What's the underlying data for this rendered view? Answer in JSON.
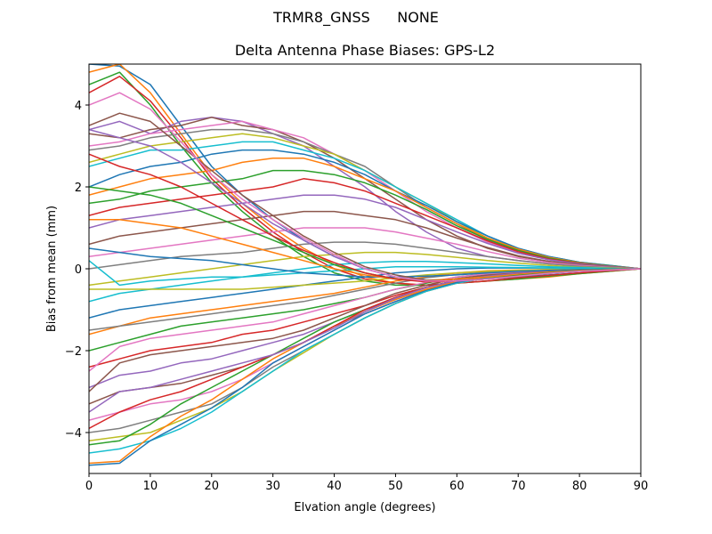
{
  "figure": {
    "suptitle": "TRMR8_GNSS      NONE",
    "title": "Delta Antenna Phase Biases: GPS-L2"
  },
  "chart_data": {
    "type": "line",
    "title": "Delta Antenna Phase Biases: GPS-L2",
    "xlabel": "Elvation angle (degrees)",
    "ylabel": "Bias from mean (mm)",
    "xlim": [
      0,
      90
    ],
    "ylim": [
      -5,
      5
    ],
    "xticks": [
      0,
      10,
      20,
      30,
      40,
      50,
      60,
      70,
      80,
      90
    ],
    "yticks": [
      -4,
      -2,
      0,
      2,
      4
    ],
    "grid": false,
    "legend": false,
    "colors": [
      "#1f77b4",
      "#ff7f0e",
      "#2ca02c",
      "#d62728",
      "#9467bd",
      "#8c564b",
      "#e377c2",
      "#7f7f7f",
      "#bcbd22",
      "#17becf"
    ],
    "x": [
      0,
      5,
      10,
      15,
      20,
      25,
      30,
      35,
      40,
      45,
      50,
      55,
      60,
      65,
      70,
      75,
      80,
      85,
      90
    ],
    "series": [
      {
        "values": [
          5.0,
          4.95,
          4.5,
          3.5,
          2.5,
          1.8,
          1.2,
          0.7,
          0.3,
          0.0,
          -0.2,
          -0.3,
          -0.3,
          -0.25,
          -0.2,
          -0.15,
          -0.1,
          -0.05,
          0.0
        ]
      },
      {
        "values": [
          4.8,
          5.0,
          4.3,
          3.3,
          2.3,
          1.6,
          1.0,
          0.5,
          0.1,
          -0.2,
          -0.35,
          -0.4,
          -0.35,
          -0.3,
          -0.25,
          -0.2,
          -0.12,
          -0.06,
          0.0
        ]
      },
      {
        "values": [
          4.5,
          4.8,
          4.0,
          3.0,
          2.1,
          1.4,
          0.8,
          0.3,
          -0.1,
          -0.3,
          -0.4,
          -0.4,
          -0.35,
          -0.3,
          -0.25,
          -0.18,
          -0.12,
          -0.06,
          0.0
        ]
      },
      {
        "values": [
          4.3,
          4.7,
          4.1,
          3.2,
          2.2,
          1.5,
          0.9,
          0.4,
          0.0,
          -0.25,
          -0.35,
          -0.4,
          -0.35,
          -0.3,
          -0.22,
          -0.16,
          -0.1,
          -0.05,
          0.0
        ]
      },
      {
        "values": [
          3.4,
          3.6,
          3.3,
          3.6,
          3.7,
          3.6,
          3.3,
          3.0,
          2.5,
          2.0,
          1.4,
          0.9,
          0.5,
          0.3,
          0.2,
          0.12,
          0.08,
          0.04,
          0.0
        ]
      },
      {
        "values": [
          3.3,
          3.2,
          3.4,
          3.5,
          3.7,
          3.5,
          3.4,
          3.1,
          2.7,
          2.2,
          1.7,
          1.2,
          0.8,
          0.5,
          0.3,
          0.18,
          0.1,
          0.05,
          0.0
        ]
      },
      {
        "values": [
          3.0,
          3.1,
          3.3,
          3.4,
          3.5,
          3.6,
          3.4,
          3.2,
          2.8,
          2.4,
          1.9,
          1.4,
          1.0,
          0.65,
          0.4,
          0.22,
          0.12,
          0.06,
          0.0
        ]
      },
      {
        "values": [
          2.9,
          3.0,
          3.2,
          3.3,
          3.4,
          3.4,
          3.3,
          3.1,
          2.8,
          2.5,
          2.0,
          1.5,
          1.1,
          0.7,
          0.45,
          0.25,
          0.14,
          0.07,
          0.0
        ]
      },
      {
        "values": [
          2.6,
          2.8,
          3.0,
          3.1,
          3.2,
          3.3,
          3.2,
          3.0,
          2.8,
          2.4,
          2.0,
          1.6,
          1.15,
          0.75,
          0.48,
          0.28,
          0.15,
          0.07,
          0.0
        ]
      },
      {
        "values": [
          2.5,
          2.7,
          2.9,
          2.9,
          3.0,
          3.1,
          3.1,
          2.9,
          2.7,
          2.4,
          2.0,
          1.6,
          1.2,
          0.8,
          0.5,
          0.3,
          0.16,
          0.08,
          0.0
        ]
      },
      {
        "values": [
          2.0,
          2.3,
          2.5,
          2.6,
          2.8,
          2.9,
          2.9,
          2.8,
          2.6,
          2.3,
          1.9,
          1.55,
          1.15,
          0.8,
          0.5,
          0.3,
          0.16,
          0.08,
          0.0
        ]
      },
      {
        "values": [
          1.8,
          2.0,
          2.2,
          2.3,
          2.4,
          2.6,
          2.7,
          2.7,
          2.5,
          2.2,
          1.9,
          1.5,
          1.1,
          0.75,
          0.48,
          0.28,
          0.15,
          0.07,
          0.0
        ]
      },
      {
        "values": [
          1.6,
          1.7,
          1.9,
          2.0,
          2.1,
          2.2,
          2.4,
          2.4,
          2.3,
          2.1,
          1.8,
          1.45,
          1.05,
          0.72,
          0.45,
          0.26,
          0.14,
          0.07,
          0.0
        ]
      },
      {
        "values": [
          1.3,
          1.5,
          1.6,
          1.7,
          1.8,
          1.9,
          2.0,
          2.2,
          2.1,
          1.9,
          1.6,
          1.3,
          1.0,
          0.68,
          0.42,
          0.24,
          0.13,
          0.06,
          0.0
        ]
      },
      {
        "values": [
          1.0,
          1.2,
          1.3,
          1.4,
          1.5,
          1.6,
          1.7,
          1.8,
          1.8,
          1.7,
          1.5,
          1.2,
          0.9,
          0.62,
          0.38,
          0.22,
          0.12,
          0.06,
          0.0
        ]
      },
      {
        "values": [
          0.6,
          0.8,
          0.9,
          1.0,
          1.1,
          1.2,
          1.3,
          1.4,
          1.4,
          1.3,
          1.2,
          1.0,
          0.75,
          0.52,
          0.32,
          0.18,
          0.1,
          0.05,
          0.0
        ]
      },
      {
        "values": [
          0.3,
          0.4,
          0.5,
          0.6,
          0.7,
          0.8,
          0.9,
          1.0,
          1.0,
          1.0,
          0.9,
          0.75,
          0.6,
          0.42,
          0.26,
          0.15,
          0.08,
          0.04,
          0.0
        ]
      },
      {
        "values": [
          0.0,
          0.1,
          0.2,
          0.3,
          0.35,
          0.4,
          0.5,
          0.6,
          0.65,
          0.65,
          0.6,
          0.5,
          0.4,
          0.3,
          0.2,
          0.12,
          0.06,
          0.03,
          0.0
        ]
      },
      {
        "values": [
          -0.4,
          -0.3,
          -0.2,
          -0.1,
          0.0,
          0.1,
          0.2,
          0.3,
          0.35,
          0.4,
          0.4,
          0.35,
          0.28,
          0.2,
          0.14,
          0.08,
          0.04,
          0.02,
          0.0
        ]
      },
      {
        "values": [
          -0.8,
          -0.6,
          -0.5,
          -0.4,
          -0.3,
          -0.2,
          -0.1,
          0.0,
          0.1,
          0.15,
          0.18,
          0.18,
          0.15,
          0.12,
          0.08,
          0.05,
          0.03,
          0.01,
          0.0
        ]
      },
      {
        "values": [
          -1.2,
          -1.0,
          -0.9,
          -0.8,
          -0.7,
          -0.6,
          -0.5,
          -0.4,
          -0.3,
          -0.2,
          -0.1,
          -0.05,
          0.0,
          0.02,
          0.02,
          0.02,
          0.01,
          0.0,
          0.0
        ]
      },
      {
        "values": [
          -1.6,
          -1.4,
          -1.2,
          -1.1,
          -1.0,
          -0.9,
          -0.8,
          -0.7,
          -0.6,
          -0.45,
          -0.3,
          -0.2,
          -0.1,
          -0.05,
          -0.03,
          -0.02,
          -0.01,
          0.0,
          0.0
        ]
      },
      {
        "values": [
          -2.0,
          -1.8,
          -1.6,
          -1.4,
          -1.3,
          -1.2,
          -1.1,
          -1.0,
          -0.85,
          -0.7,
          -0.5,
          -0.35,
          -0.2,
          -0.12,
          -0.07,
          -0.04,
          -0.02,
          -0.01,
          0.0
        ]
      },
      {
        "values": [
          -2.4,
          -2.2,
          -2.0,
          -1.9,
          -1.8,
          -1.6,
          -1.5,
          -1.3,
          -1.1,
          -0.9,
          -0.65,
          -0.45,
          -0.28,
          -0.18,
          -0.1,
          -0.06,
          -0.03,
          -0.01,
          0.0
        ]
      },
      {
        "values": [
          -2.9,
          -2.6,
          -2.5,
          -2.3,
          -2.2,
          -2.0,
          -1.8,
          -1.6,
          -1.3,
          -1.0,
          -0.75,
          -0.5,
          -0.32,
          -0.2,
          -0.12,
          -0.07,
          -0.04,
          -0.02,
          0.0
        ]
      },
      {
        "values": [
          -3.3,
          -3.0,
          -2.9,
          -2.8,
          -2.6,
          -2.4,
          -2.1,
          -1.8,
          -1.4,
          -1.1,
          -0.8,
          -0.55,
          -0.35,
          -0.22,
          -0.13,
          -0.08,
          -0.04,
          -0.02,
          0.0
        ]
      },
      {
        "values": [
          -3.7,
          -3.5,
          -3.3,
          -3.2,
          -3.0,
          -2.7,
          -2.3,
          -1.9,
          -1.5,
          -1.1,
          -0.8,
          -0.55,
          -0.35,
          -0.22,
          -0.13,
          -0.08,
          -0.04,
          -0.02,
          0.0
        ]
      },
      {
        "values": [
          -4.0,
          -3.9,
          -3.7,
          -3.5,
          -3.3,
          -2.9,
          -2.4,
          -2.0,
          -1.6,
          -1.2,
          -0.85,
          -0.55,
          -0.35,
          -0.22,
          -0.13,
          -0.08,
          -0.04,
          -0.02,
          0.0
        ]
      },
      {
        "values": [
          -4.2,
          -4.1,
          -4.0,
          -3.7,
          -3.4,
          -3.0,
          -2.5,
          -2.05,
          -1.6,
          -1.2,
          -0.85,
          -0.55,
          -0.35,
          -0.22,
          -0.13,
          -0.08,
          -0.04,
          -0.02,
          0.0
        ]
      },
      {
        "values": [
          -4.5,
          -4.4,
          -4.2,
          -3.9,
          -3.5,
          -3.0,
          -2.5,
          -2.0,
          -1.6,
          -1.2,
          -0.85,
          -0.55,
          -0.35,
          -0.22,
          -0.13,
          -0.08,
          -0.04,
          -0.02,
          0.0
        ]
      },
      {
        "values": [
          -4.8,
          -4.75,
          -4.2,
          -3.8,
          -3.4,
          -2.9,
          -2.3,
          -1.9,
          -1.5,
          -1.1,
          -0.8,
          -0.52,
          -0.33,
          -0.2,
          -0.12,
          -0.07,
          -0.04,
          -0.02,
          0.0
        ]
      },
      {
        "values": [
          -4.75,
          -4.7,
          -4.1,
          -3.6,
          -3.2,
          -2.7,
          -2.2,
          -1.8,
          -1.4,
          -1.05,
          -0.75,
          -0.5,
          -0.3,
          -0.19,
          -0.11,
          -0.07,
          -0.04,
          -0.02,
          0.0
        ]
      },
      {
        "values": [
          -4.3,
          -4.2,
          -3.8,
          -3.3,
          -2.9,
          -2.5,
          -2.1,
          -1.7,
          -1.3,
          -1.0,
          -0.7,
          -0.45,
          -0.28,
          -0.18,
          -0.1,
          -0.06,
          -0.03,
          -0.01,
          0.0
        ]
      },
      {
        "values": [
          -3.9,
          -3.5,
          -3.2,
          -3.0,
          -2.7,
          -2.4,
          -2.1,
          -1.8,
          -1.4,
          -1.0,
          -0.7,
          -0.45,
          -0.28,
          -0.18,
          -0.1,
          -0.06,
          -0.03,
          -0.01,
          0.0
        ]
      },
      {
        "values": [
          -3.5,
          -3.0,
          -2.9,
          -2.7,
          -2.5,
          -2.3,
          -2.1,
          -1.8,
          -1.45,
          -1.05,
          -0.72,
          -0.46,
          -0.28,
          -0.18,
          -0.1,
          -0.06,
          -0.03,
          -0.01,
          0.0
        ]
      },
      {
        "values": [
          -3.0,
          -2.3,
          -2.1,
          -2.0,
          -1.9,
          -1.8,
          -1.7,
          -1.5,
          -1.2,
          -0.9,
          -0.6,
          -0.4,
          -0.24,
          -0.15,
          -0.08,
          -0.05,
          -0.03,
          -0.01,
          0.0
        ]
      },
      {
        "values": [
          -2.5,
          -1.9,
          -1.7,
          -1.6,
          -1.5,
          -1.4,
          -1.3,
          -1.1,
          -0.9,
          -0.7,
          -0.5,
          -0.33,
          -0.2,
          -0.12,
          -0.07,
          -0.04,
          -0.02,
          -0.01,
          0.0
        ]
      },
      {
        "values": [
          -1.5,
          -1.4,
          -1.3,
          -1.2,
          -1.1,
          -1.0,
          -0.9,
          -0.8,
          -0.65,
          -0.5,
          -0.35,
          -0.22,
          -0.14,
          -0.08,
          -0.05,
          -0.03,
          -0.02,
          -0.01,
          0.0
        ]
      },
      {
        "values": [
          -0.5,
          -0.5,
          -0.5,
          -0.5,
          -0.5,
          -0.5,
          -0.45,
          -0.4,
          -0.35,
          -0.3,
          -0.22,
          -0.15,
          -0.1,
          -0.06,
          -0.04,
          -0.02,
          -0.01,
          0.0,
          0.0
        ]
      },
      {
        "values": [
          0.2,
          -0.4,
          -0.3,
          -0.25,
          -0.2,
          -0.2,
          -0.15,
          -0.1,
          -0.05,
          0.0,
          0.05,
          0.05,
          0.05,
          0.04,
          0.03,
          0.02,
          0.01,
          0.0,
          0.0
        ]
      },
      {
        "values": [
          0.5,
          0.4,
          0.3,
          0.25,
          0.2,
          0.1,
          0.0,
          -0.1,
          -0.15,
          -0.2,
          -0.2,
          -0.18,
          -0.15,
          -0.1,
          -0.06,
          -0.04,
          -0.02,
          -0.01,
          0.0
        ]
      },
      {
        "values": [
          1.2,
          1.2,
          1.1,
          1.0,
          0.8,
          0.6,
          0.4,
          0.2,
          0.0,
          -0.15,
          -0.25,
          -0.28,
          -0.25,
          -0.2,
          -0.14,
          -0.08,
          -0.04,
          -0.02,
          0.0
        ]
      },
      {
        "values": [
          2.0,
          1.9,
          1.8,
          1.6,
          1.3,
          1.0,
          0.7,
          0.4,
          0.1,
          -0.1,
          -0.25,
          -0.3,
          -0.3,
          -0.24,
          -0.16,
          -0.1,
          -0.05,
          -0.02,
          0.0
        ]
      },
      {
        "values": [
          2.8,
          2.5,
          2.3,
          2.0,
          1.6,
          1.2,
          0.8,
          0.45,
          0.15,
          -0.1,
          -0.25,
          -0.32,
          -0.3,
          -0.25,
          -0.18,
          -0.11,
          -0.06,
          -0.03,
          0.0
        ]
      },
      {
        "values": [
          3.4,
          3.2,
          3.0,
          2.6,
          2.1,
          1.6,
          1.1,
          0.7,
          0.3,
          0.0,
          -0.2,
          -0.3,
          -0.3,
          -0.25,
          -0.18,
          -0.11,
          -0.06,
          -0.03,
          0.0
        ]
      },
      {
        "values": [
          3.5,
          3.8,
          3.6,
          3.0,
          2.4,
          1.8,
          1.3,
          0.8,
          0.4,
          0.05,
          -0.15,
          -0.28,
          -0.3,
          -0.25,
          -0.18,
          -0.11,
          -0.06,
          -0.03,
          0.0
        ]
      },
      {
        "values": [
          4.0,
          4.3,
          3.9,
          3.1,
          2.3,
          1.7,
          1.2,
          0.75,
          0.35,
          0.0,
          -0.2,
          -0.3,
          -0.3,
          -0.25,
          -0.18,
          -0.11,
          -0.06,
          -0.03,
          0.0
        ]
      }
    ]
  }
}
